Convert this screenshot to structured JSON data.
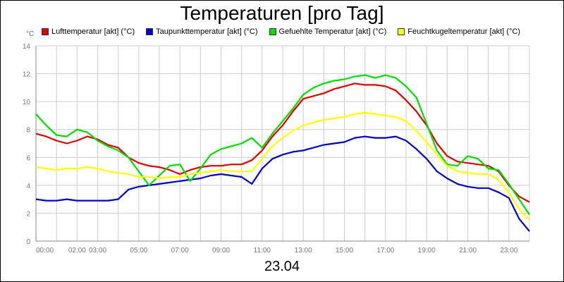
{
  "chart_data": {
    "type": "line",
    "title": "Temperaturen [pro Tag]",
    "ylabel": "°C",
    "xlabel": "23.04",
    "ylim": [
      0,
      14
    ],
    "yticks": [
      "0",
      "2",
      "4",
      "6",
      "8",
      "10",
      "12",
      "14"
    ],
    "xlim": [
      0,
      24
    ],
    "xticks": [
      "00:00",
      "02:00",
      "03:00",
      "05:00",
      "07:00",
      "09:00",
      "11:00",
      "13:00",
      "15:00",
      "17:00",
      "19:00",
      "21:00",
      "23:00"
    ],
    "grid": true,
    "legend_position": "top",
    "x": [
      0,
      0.5,
      1,
      1.5,
      2,
      2.5,
      3,
      3.5,
      4,
      4.5,
      5,
      5.5,
      6,
      6.5,
      7,
      7.5,
      8,
      8.5,
      9,
      9.5,
      10,
      10.5,
      11,
      11.5,
      12,
      12.5,
      13,
      13.5,
      14,
      14.5,
      15,
      15.5,
      16,
      16.5,
      17,
      17.5,
      18,
      18.5,
      19,
      19.5,
      20,
      20.5,
      21,
      21.5,
      22,
      22.5,
      23,
      23.5,
      24
    ],
    "series": [
      {
        "name": "Lufttemperatur [akt] (°C)",
        "color": "#dd0000",
        "values": [
          7.7,
          7.5,
          7.2,
          7.0,
          7.2,
          7.5,
          7.3,
          6.9,
          6.7,
          6.0,
          5.6,
          5.4,
          5.3,
          5.1,
          4.8,
          5.1,
          5.3,
          5.4,
          5.4,
          5.5,
          5.5,
          5.8,
          6.5,
          7.5,
          8.3,
          9.3,
          10.2,
          10.4,
          10.6,
          10.9,
          11.1,
          11.3,
          11.2,
          11.2,
          11.1,
          10.8,
          10.1,
          9.3,
          8.3,
          7.0,
          6.1,
          5.7,
          5.6,
          5.5,
          5.4,
          5.0,
          4.0,
          3.2,
          2.8
        ]
      },
      {
        "name": "Taupunkttemperatur [akt] (°C)",
        "color": "#0000cc",
        "values": [
          3.0,
          2.9,
          2.9,
          3.0,
          2.9,
          2.9,
          2.9,
          2.9,
          3.0,
          3.7,
          3.9,
          4.0,
          4.1,
          4.2,
          4.3,
          4.4,
          4.5,
          4.7,
          4.8,
          4.7,
          4.6,
          4.1,
          5.2,
          5.9,
          6.2,
          6.4,
          6.5,
          6.7,
          6.9,
          7.0,
          7.1,
          7.4,
          7.5,
          7.4,
          7.4,
          7.5,
          7.2,
          6.6,
          5.9,
          5.0,
          4.5,
          4.1,
          3.9,
          3.8,
          3.8,
          3.5,
          3.1,
          1.6,
          0.7
        ]
      },
      {
        "name": "Gefuehlte Temperatur [akt] (°C)",
        "color": "#00dd00",
        "values": [
          9.1,
          8.3,
          7.6,
          7.5,
          8.0,
          7.8,
          7.2,
          6.8,
          6.5,
          6.0,
          5.0,
          4.0,
          4.7,
          5.4,
          5.5,
          4.3,
          5.2,
          6.2,
          6.6,
          6.8,
          7.0,
          7.4,
          6.7,
          7.7,
          8.6,
          9.5,
          10.5,
          11.0,
          11.3,
          11.5,
          11.6,
          11.8,
          11.9,
          11.7,
          11.9,
          11.7,
          11.1,
          10.3,
          8.4,
          6.5,
          5.5,
          5.4,
          6.1,
          5.9,
          5.2,
          5.1,
          4.1,
          3.0,
          1.9
        ]
      },
      {
        "name": "Feuchtkugeltemperatur [akt] (°C)",
        "color": "#ffff00",
        "values": [
          5.3,
          5.2,
          5.1,
          5.2,
          5.2,
          5.3,
          5.2,
          5.0,
          4.9,
          4.8,
          4.6,
          4.6,
          4.5,
          4.6,
          4.6,
          4.8,
          4.9,
          5.0,
          5.1,
          5.0,
          5.0,
          5.0,
          5.9,
          6.8,
          7.4,
          7.9,
          8.3,
          8.5,
          8.7,
          8.8,
          8.9,
          9.1,
          9.2,
          9.1,
          9.0,
          8.9,
          8.6,
          7.9,
          7.1,
          6.2,
          5.4,
          5.0,
          4.9,
          4.8,
          4.8,
          4.4,
          3.5,
          2.3,
          1.5
        ]
      }
    ]
  }
}
